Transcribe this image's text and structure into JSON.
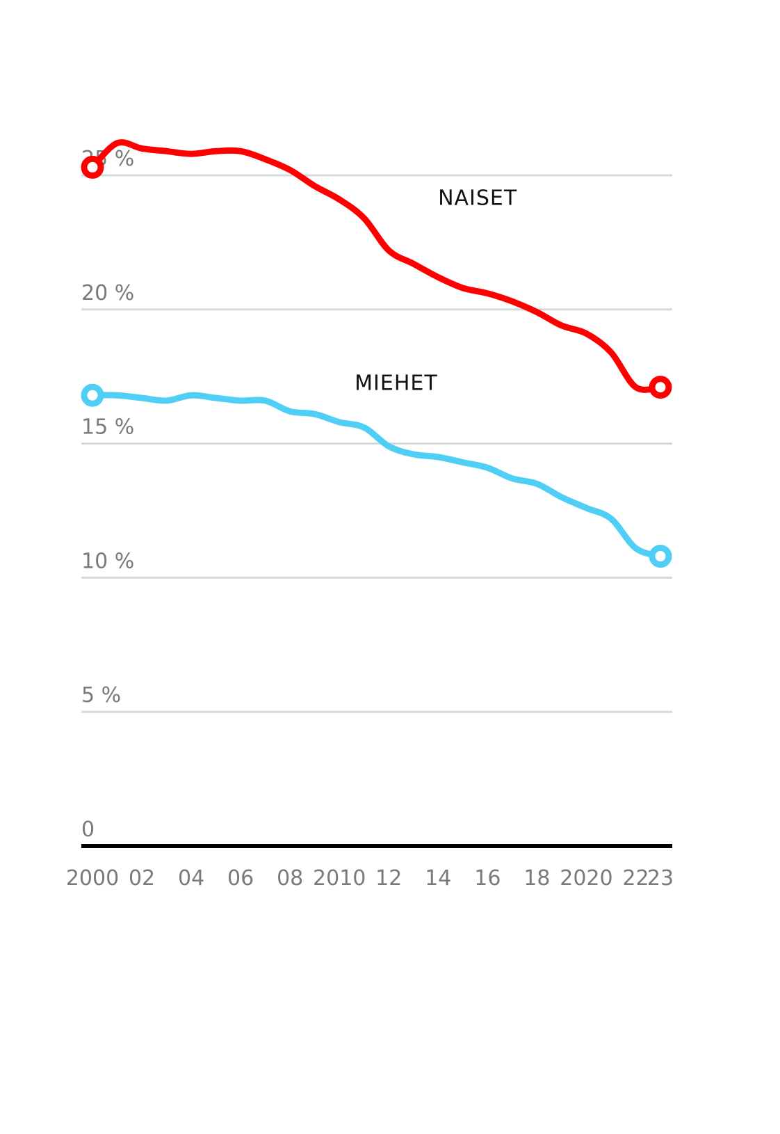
{
  "chart_data": {
    "type": "line",
    "title": "",
    "xlabel": "",
    "ylabel": "",
    "ylim": [
      0,
      25
    ],
    "yticks": [
      {
        "value": 0,
        "label": "0"
      },
      {
        "value": 5,
        "label": "5 %"
      },
      {
        "value": 10,
        "label": "10 %"
      },
      {
        "value": 15,
        "label": "15 %"
      },
      {
        "value": 20,
        "label": "20 %"
      },
      {
        "value": 25,
        "label": "25 %"
      }
    ],
    "xticks": [
      {
        "value": 2000,
        "label": "2000"
      },
      {
        "value": 2002,
        "label": "02"
      },
      {
        "value": 2004,
        "label": "04"
      },
      {
        "value": 2006,
        "label": "06"
      },
      {
        "value": 2008,
        "label": "08"
      },
      {
        "value": 2010,
        "label": "2010"
      },
      {
        "value": 2012,
        "label": "12"
      },
      {
        "value": 2014,
        "label": "14"
      },
      {
        "value": 2016,
        "label": "16"
      },
      {
        "value": 2018,
        "label": "18"
      },
      {
        "value": 2020,
        "label": "2020"
      },
      {
        "value": 2022,
        "label": "22"
      },
      {
        "value": 2023,
        "label": "23"
      }
    ],
    "x": [
      2000,
      2001,
      2002,
      2003,
      2004,
      2005,
      2006,
      2007,
      2008,
      2009,
      2010,
      2011,
      2012,
      2013,
      2014,
      2015,
      2016,
      2017,
      2018,
      2019,
      2020,
      2021,
      2022,
      2023
    ],
    "grid": true,
    "legend": "inline labels",
    "series": [
      {
        "name": "NAISET",
        "color": "#ff0000",
        "values": [
          25.3,
          26.2,
          26.0,
          25.9,
          25.8,
          25.9,
          25.9,
          25.6,
          25.2,
          24.6,
          24.1,
          23.4,
          22.2,
          21.7,
          21.2,
          20.8,
          20.6,
          20.3,
          19.9,
          19.4,
          19.1,
          18.4,
          17.1,
          17.1
        ]
      },
      {
        "name": "MIEHET",
        "color": "#4fcff5",
        "values": [
          16.8,
          16.8,
          16.7,
          16.6,
          16.8,
          16.7,
          16.6,
          16.6,
          16.2,
          16.1,
          15.8,
          15.6,
          14.9,
          14.6,
          14.5,
          14.3,
          14.1,
          13.7,
          13.5,
          13.0,
          12.6,
          12.2,
          11.1,
          10.8
        ]
      }
    ]
  }
}
